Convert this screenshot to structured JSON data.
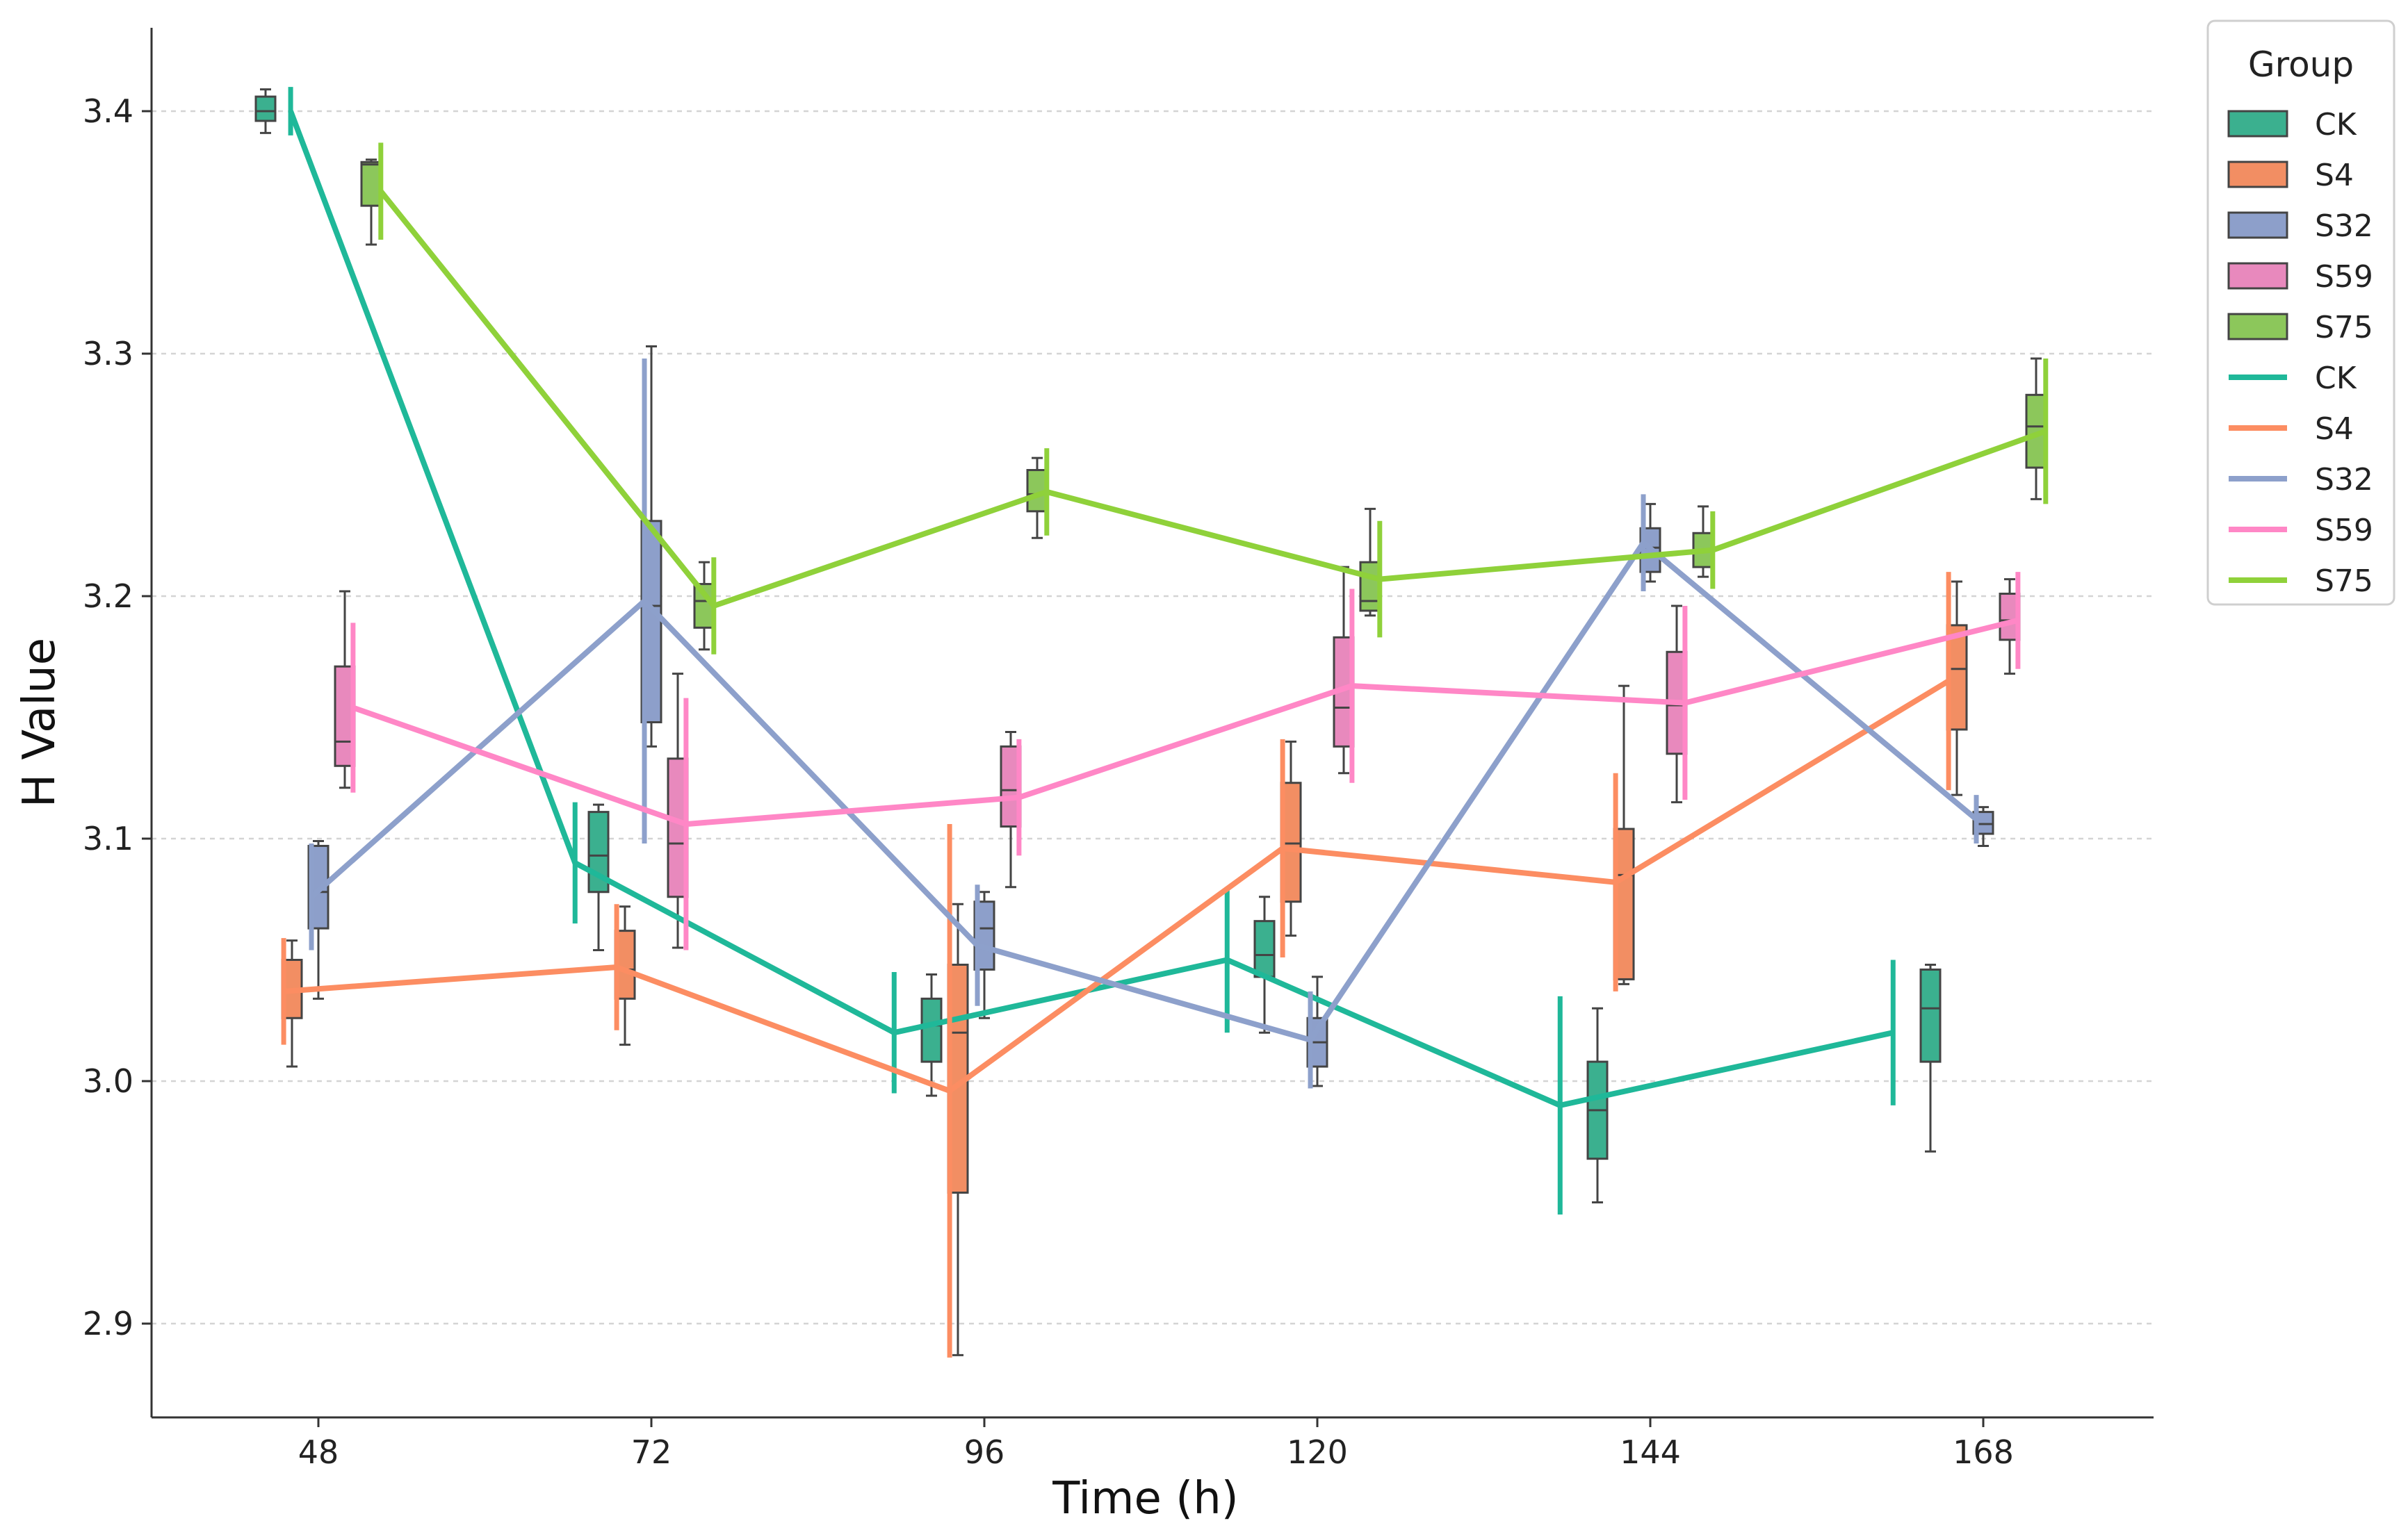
{
  "chart_data": {
    "type": "box-and-line",
    "xlabel": "Time (h)",
    "ylabel": "H Value",
    "ylim": [
      2.84,
      3.43
    ],
    "yticks": [
      "2.9",
      "3.0",
      "3.1",
      "3.2",
      "3.3",
      "3.4"
    ],
    "categories": [
      "48",
      "72",
      "96",
      "120",
      "144",
      "168"
    ],
    "grid": "horizontal dashed",
    "legend": {
      "title": "Group",
      "position": "top-right",
      "box_entries": [
        "CK",
        "S4",
        "S32",
        "S59",
        "S75"
      ],
      "line_entries": [
        "CK",
        "S4",
        "S32",
        "S59",
        "S75"
      ]
    },
    "series": [
      {
        "name": "CK",
        "color": "#1fb899",
        "box_fill": "#3bb08f",
        "line": [
          [
            46,
            3.4
          ],
          [
            66.5,
            3.09
          ],
          [
            89.5,
            3.02
          ],
          [
            113.5,
            3.05
          ],
          [
            137.5,
            2.99
          ],
          [
            161.5,
            3.02
          ]
        ],
        "line_err": [
          0.01,
          0.025,
          0.025,
          0.03,
          0.045,
          0.03
        ],
        "boxes": [
          {
            "x": 47.9,
            "whislo": 3.391,
            "q1": 3.396,
            "med": 3.4,
            "q3": 3.406,
            "whishi": 3.409
          },
          {
            "x": 71.9,
            "whislo": 3.054,
            "q1": 3.078,
            "med": 3.093,
            "q3": 3.111,
            "whishi": 3.114
          },
          {
            "x": 95.9,
            "whislo": 2.994,
            "q1": 3.008,
            "med": 3.023,
            "q3": 3.034,
            "whishi": 3.044
          },
          {
            "x": 119.9,
            "whislo": 3.02,
            "q1": 3.043,
            "med": 3.052,
            "q3": 3.066,
            "whishi": 3.076
          },
          {
            "x": 143.9,
            "whislo": 2.95,
            "q1": 2.968,
            "med": 2.988,
            "q3": 3.008,
            "whishi": 3.03
          },
          {
            "x": 167.9,
            "whislo": 2.971,
            "q1": 3.008,
            "med": 3.03,
            "q3": 3.046,
            "whishi": 3.048
          }
        ]
      },
      {
        "name": "S4",
        "color": "#fc8d62",
        "box_fill": "#f28e63",
        "line": [
          [
            45.5,
            3.037
          ],
          [
            69.5,
            3.047
          ],
          [
            93.5,
            2.996
          ],
          [
            117.5,
            3.096
          ],
          [
            141.5,
            3.082
          ],
          [
            165.5,
            3.165
          ]
        ],
        "line_err": [
          0.022,
          0.026,
          0.11,
          0.045,
          0.045,
          0.045
        ],
        "boxes": [
          {
            "x": 47.9,
            "whislo": 3.006,
            "q1": 3.026,
            "med": 3.037,
            "q3": 3.05,
            "whishi": 3.058
          },
          {
            "x": 71.9,
            "whislo": 3.015,
            "q1": 3.034,
            "med": 3.046,
            "q3": 3.062,
            "whishi": 3.072
          },
          {
            "x": 95.9,
            "whislo": 2.887,
            "q1": 2.954,
            "med": 3.02,
            "q3": 3.048,
            "whishi": 3.073
          },
          {
            "x": 119.9,
            "whislo": 3.06,
            "q1": 3.074,
            "med": 3.098,
            "q3": 3.123,
            "whishi": 3.14
          },
          {
            "x": 143.9,
            "whislo": 3.04,
            "q1": 3.042,
            "med": 3.085,
            "q3": 3.104,
            "whishi": 3.163
          },
          {
            "x": 167.9,
            "whislo": 3.118,
            "q1": 3.145,
            "med": 3.17,
            "q3": 3.188,
            "whishi": 3.206
          }
        ]
      },
      {
        "name": "S32",
        "color": "#8da0cb",
        "box_fill": "#8d9fca",
        "line": [
          [
            47.5,
            3.076
          ],
          [
            71.5,
            3.198
          ],
          [
            95.5,
            3.056
          ],
          [
            119.5,
            3.017
          ],
          [
            143.5,
            3.222
          ],
          [
            167.5,
            3.108
          ]
        ],
        "line_err": [
          0.022,
          0.1,
          0.025,
          0.02,
          0.02,
          0.01
        ],
        "boxes": [
          {
            "x": 47.9,
            "whislo": 3.034,
            "q1": 3.063,
            "med": 3.078,
            "q3": 3.097,
            "whishi": 3.099
          },
          {
            "x": 71.9,
            "whislo": 3.138,
            "q1": 3.148,
            "med": 3.196,
            "q3": 3.231,
            "whishi": 3.303
          },
          {
            "x": 95.9,
            "whislo": 3.026,
            "q1": 3.046,
            "med": 3.063,
            "q3": 3.074,
            "whishi": 3.078
          },
          {
            "x": 119.9,
            "whislo": 2.998,
            "q1": 3.006,
            "med": 3.016,
            "q3": 3.026,
            "whishi": 3.043
          },
          {
            "x": 143.9,
            "whislo": 3.206,
            "q1": 3.21,
            "med": 3.22,
            "q3": 3.228,
            "whishi": 3.238
          },
          {
            "x": 167.9,
            "whislo": 3.097,
            "q1": 3.102,
            "med": 3.106,
            "q3": 3.111,
            "whishi": 3.113
          }
        ]
      },
      {
        "name": "S59",
        "color": "#ff87c6",
        "box_fill": "#e889bd",
        "line": [
          [
            50.5,
            3.154
          ],
          [
            74.5,
            3.106
          ],
          [
            98.5,
            3.117
          ],
          [
            122.5,
            3.163
          ],
          [
            146.5,
            3.156
          ],
          [
            170.5,
            3.19
          ]
        ],
        "line_err": [
          0.035,
          0.052,
          0.024,
          0.04,
          0.04,
          0.02
        ],
        "boxes": [
          {
            "x": 47.9,
            "whislo": 3.121,
            "q1": 3.13,
            "med": 3.14,
            "q3": 3.171,
            "whishi": 3.202
          },
          {
            "x": 71.9,
            "whislo": 3.055,
            "q1": 3.076,
            "med": 3.098,
            "q3": 3.133,
            "whishi": 3.168
          },
          {
            "x": 95.9,
            "whislo": 3.08,
            "q1": 3.105,
            "med": 3.12,
            "q3": 3.138,
            "whishi": 3.144
          },
          {
            "x": 119.9,
            "whislo": 3.127,
            "q1": 3.138,
            "med": 3.154,
            "q3": 3.183,
            "whishi": 3.212
          },
          {
            "x": 143.9,
            "whislo": 3.115,
            "q1": 3.135,
            "med": 3.155,
            "q3": 3.177,
            "whishi": 3.196
          },
          {
            "x": 167.9,
            "whislo": 3.168,
            "q1": 3.182,
            "med": 3.19,
            "q3": 3.201,
            "whishi": 3.207
          }
        ]
      },
      {
        "name": "S75",
        "color": "#8fd13a",
        "box_fill": "#8cc75b",
        "line": [
          [
            52.5,
            3.367
          ],
          [
            76.5,
            3.196
          ],
          [
            100.5,
            3.243
          ],
          [
            124.5,
            3.207
          ],
          [
            148.5,
            3.219
          ],
          [
            172.5,
            3.268
          ]
        ],
        "line_err": [
          0.02,
          0.02,
          0.018,
          0.024,
          0.016,
          0.03
        ],
        "boxes": [
          {
            "x": 47.9,
            "whislo": 3.345,
            "q1": 3.361,
            "med": 3.378,
            "q3": 3.379,
            "whishi": 3.38
          },
          {
            "x": 71.9,
            "whislo": 3.178,
            "q1": 3.187,
            "med": 3.198,
            "q3": 3.205,
            "whishi": 3.214
          },
          {
            "x": 95.9,
            "whislo": 3.224,
            "q1": 3.235,
            "med": 3.242,
            "q3": 3.252,
            "whishi": 3.257
          },
          {
            "x": 119.9,
            "whislo": 3.192,
            "q1": 3.194,
            "med": 3.198,
            "q3": 3.214,
            "whishi": 3.236
          },
          {
            "x": 143.9,
            "whislo": 3.208,
            "q1": 3.212,
            "med": 3.219,
            "q3": 3.226,
            "whishi": 3.237
          },
          {
            "x": 167.9,
            "whislo": 3.24,
            "q1": 3.253,
            "med": 3.27,
            "q3": 3.283,
            "whishi": 3.298
          }
        ]
      }
    ]
  }
}
